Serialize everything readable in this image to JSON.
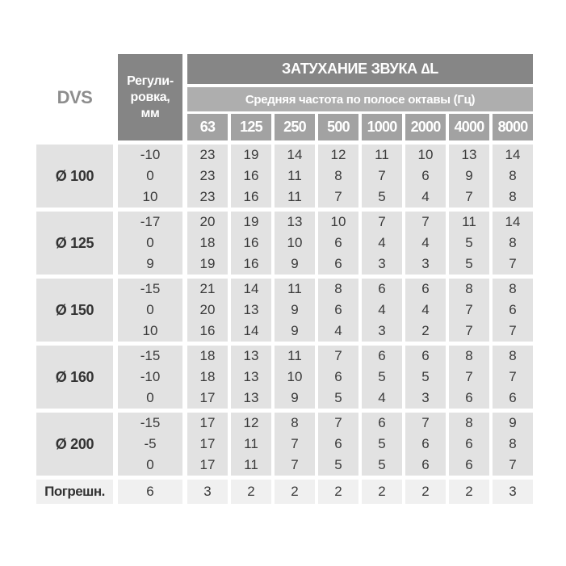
{
  "header": {
    "dvs": "DVS",
    "adjustment_label": "Регули-\nровка,\nмм",
    "attenuation_title": "ЗАТУХАНИЕ ЗВУКА ∆L",
    "frequency_title": "Средняя частота по полосе октавы (Гц)",
    "frequencies": [
      "63",
      "125",
      "250",
      "500",
      "1000",
      "2000",
      "4000",
      "8000"
    ]
  },
  "groups": [
    {
      "label": "Ø 100",
      "rows": [
        {
          "adjustment": "-10",
          "values": [
            23,
            19,
            14,
            12,
            11,
            10,
            13,
            14
          ]
        },
        {
          "adjustment": "0",
          "values": [
            23,
            16,
            11,
            8,
            7,
            6,
            9,
            8
          ]
        },
        {
          "adjustment": "10",
          "values": [
            23,
            16,
            11,
            7,
            5,
            4,
            7,
            8
          ]
        }
      ]
    },
    {
      "label": "Ø 125",
      "rows": [
        {
          "adjustment": "-17",
          "values": [
            20,
            19,
            13,
            10,
            7,
            7,
            11,
            14
          ]
        },
        {
          "adjustment": "0",
          "values": [
            18,
            16,
            10,
            6,
            4,
            4,
            5,
            8
          ]
        },
        {
          "adjustment": "9",
          "values": [
            19,
            16,
            9,
            6,
            3,
            3,
            5,
            7
          ]
        }
      ]
    },
    {
      "label": "Ø 150",
      "rows": [
        {
          "adjustment": "-15",
          "values": [
            21,
            14,
            11,
            8,
            6,
            6,
            8,
            8
          ]
        },
        {
          "adjustment": "0",
          "values": [
            20,
            13,
            9,
            6,
            4,
            4,
            7,
            6
          ]
        },
        {
          "adjustment": "10",
          "values": [
            16,
            14,
            9,
            4,
            3,
            2,
            7,
            7
          ]
        }
      ]
    },
    {
      "label": "Ø 160",
      "rows": [
        {
          "adjustment": "-15",
          "values": [
            18,
            13,
            11,
            7,
            6,
            6,
            8,
            8
          ]
        },
        {
          "adjustment": "-10",
          "values": [
            18,
            13,
            10,
            6,
            5,
            5,
            7,
            7
          ]
        },
        {
          "adjustment": "0",
          "values": [
            17,
            13,
            9,
            5,
            4,
            3,
            6,
            6
          ]
        }
      ]
    },
    {
      "label": "Ø 200",
      "rows": [
        {
          "adjustment": "-15",
          "values": [
            17,
            12,
            8,
            7,
            6,
            7,
            8,
            9
          ]
        },
        {
          "adjustment": "-5",
          "values": [
            17,
            11,
            7,
            6,
            5,
            6,
            6,
            8
          ]
        },
        {
          "adjustment": "0",
          "values": [
            17,
            11,
            7,
            5,
            5,
            6,
            6,
            7
          ]
        }
      ]
    }
  ],
  "error_row": {
    "label": "Погрешн.",
    "adjustment_value": "6",
    "values": [
      3,
      2,
      2,
      2,
      2,
      2,
      2,
      3
    ]
  },
  "colors": {
    "header_dark": "#858585",
    "header_band_top": "#868686",
    "header_band_mid": "#aeaeae",
    "frequency_cell": "#a2a2a2",
    "data_cell_bg": "#e2e2e2",
    "error_row_bg": "#f0f0f0",
    "data_text": "#3a3a3a",
    "dvs_text": "#8d8d8d"
  }
}
